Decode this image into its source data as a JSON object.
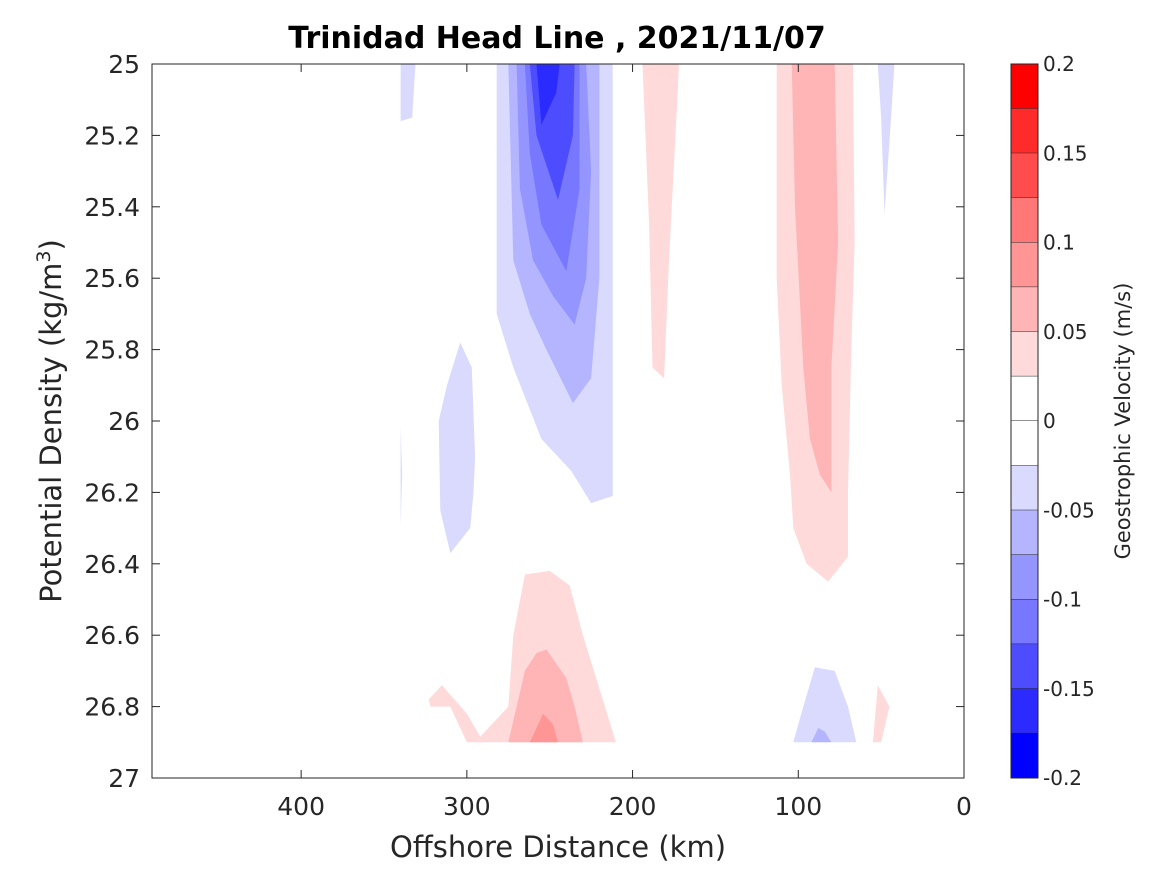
{
  "chart_data": {
    "type": "heatmap",
    "subtype": "filled-contour",
    "title": "Trinidad Head Line , 2021/11/07",
    "xlabel": "Offshore Distance (km)",
    "ylabel_main": "Potential Density (kg/m",
    "ylabel_sup": "3",
    "ylabel_end": ")",
    "xlim": [
      490,
      0
    ],
    "x_reversed": true,
    "x_ticks": [
      400,
      300,
      200,
      100,
      0
    ],
    "x_tick_labels": [
      "400",
      "300",
      "200",
      "100",
      "0"
    ],
    "ylim": [
      25,
      27
    ],
    "y_reversed": true,
    "y_ticks": [
      25,
      25.2,
      25.4,
      25.6,
      25.8,
      26,
      26.2,
      26.4,
      26.6,
      26.8,
      27
    ],
    "y_tick_labels": [
      "25",
      "25.2",
      "25.4",
      "25.6",
      "25.8",
      "26",
      "26.2",
      "26.4",
      "26.6",
      "26.8",
      "27"
    ],
    "colorbar": {
      "label": "Geostrophic Velocity (m/s)",
      "range": [
        -0.2,
        0.2
      ],
      "ticks": [
        0.2,
        0.15,
        0.1,
        0.05,
        0,
        -0.05,
        -0.1,
        -0.15,
        -0.2
      ],
      "tick_labels": [
        "0.2",
        "0.15",
        "0.1",
        "0.05",
        "0",
        "-0.05",
        "-0.1",
        "-0.15",
        "-0.2"
      ],
      "levels": [
        {
          "lo": 0.175,
          "hi": 0.2,
          "color": "#ff0000"
        },
        {
          "lo": 0.15,
          "hi": 0.175,
          "color": "#ff2b2b"
        },
        {
          "lo": 0.125,
          "hi": 0.15,
          "color": "#ff4d4d"
        },
        {
          "lo": 0.1,
          "hi": 0.125,
          "color": "#ff7777"
        },
        {
          "lo": 0.075,
          "hi": 0.1,
          "color": "#ff9595"
        },
        {
          "lo": 0.05,
          "hi": 0.075,
          "color": "#ffb5b5"
        },
        {
          "lo": 0.025,
          "hi": 0.05,
          "color": "#ffdada"
        },
        {
          "lo": 0,
          "hi": 0.025,
          "color": "#ffffff"
        },
        {
          "lo": -0.025,
          "hi": 0,
          "color": "#ffffff"
        },
        {
          "lo": -0.05,
          "hi": -0.025,
          "color": "#dadaff"
        },
        {
          "lo": -0.075,
          "hi": -0.05,
          "color": "#b5b5ff"
        },
        {
          "lo": -0.1,
          "hi": -0.075,
          "color": "#9595ff"
        },
        {
          "lo": -0.125,
          "hi": -0.1,
          "color": "#7777ff"
        },
        {
          "lo": -0.15,
          "hi": -0.125,
          "color": "#4d4dff"
        },
        {
          "lo": -0.175,
          "hi": -0.15,
          "color": "#2b2bff"
        },
        {
          "lo": -0.2,
          "hi": -0.175,
          "color": "#0000ff"
        }
      ]
    },
    "regions": [
      {
        "id": "neg-jet-l1",
        "value": -0.04,
        "color": "#dadaff",
        "polygon": [
          [
            282,
            25
          ],
          [
            282,
            25.7
          ],
          [
            272,
            25.85
          ],
          [
            255,
            26.05
          ],
          [
            237,
            26.14
          ],
          [
            225,
            26.23
          ],
          [
            212,
            26.21
          ],
          [
            212,
            25
          ],
          [
            282,
            25
          ]
        ]
      },
      {
        "id": "neg-jet-l2",
        "value": -0.065,
        "color": "#b5b5ff",
        "polygon": [
          [
            275,
            25
          ],
          [
            272,
            25.55
          ],
          [
            262,
            25.7
          ],
          [
            252,
            25.8
          ],
          [
            236,
            25.95
          ],
          [
            225,
            25.88
          ],
          [
            220,
            25.6
          ],
          [
            220,
            25
          ],
          [
            275,
            25
          ]
        ]
      },
      {
        "id": "neg-jet-l3",
        "value": -0.09,
        "color": "#9595ff",
        "polygon": [
          [
            270,
            25
          ],
          [
            268,
            25.35
          ],
          [
            260,
            25.55
          ],
          [
            248,
            25.65
          ],
          [
            235,
            25.73
          ],
          [
            228,
            25.6
          ],
          [
            225,
            25.3
          ],
          [
            228,
            25
          ],
          [
            270,
            25
          ]
        ]
      },
      {
        "id": "neg-jet-l4",
        "value": -0.11,
        "color": "#7777ff",
        "polygon": [
          [
            265,
            25
          ],
          [
            262,
            25.25
          ],
          [
            255,
            25.45
          ],
          [
            240,
            25.58
          ],
          [
            232,
            25.35
          ],
          [
            232,
            25
          ],
          [
            265,
            25
          ]
        ]
      },
      {
        "id": "neg-jet-l5",
        "value": -0.14,
        "color": "#4d4dff",
        "polygon": [
          [
            262,
            25
          ],
          [
            258,
            25.2
          ],
          [
            245,
            25.38
          ],
          [
            236,
            25.2
          ],
          [
            235,
            25
          ],
          [
            262,
            25
          ]
        ]
      },
      {
        "id": "neg-jet-l6",
        "value": -0.16,
        "color": "#2b2bff",
        "polygon": [
          [
            258,
            25
          ],
          [
            255,
            25.17
          ],
          [
            246,
            25.08
          ],
          [
            244,
            25
          ],
          [
            258,
            25
          ]
        ]
      },
      {
        "id": "neg-west-small",
        "value": -0.035,
        "color": "#dadaff",
        "polygon": [
          [
            340,
            25
          ],
          [
            340,
            25.16
          ],
          [
            333,
            25.15
          ],
          [
            331,
            25
          ],
          [
            340,
            25
          ]
        ]
      },
      {
        "id": "neg-west-strip",
        "value": -0.035,
        "color": "#dadaff",
        "polygon": [
          [
            304,
            25.78
          ],
          [
            297,
            25.85
          ],
          [
            295,
            26.1
          ],
          [
            296,
            26.2
          ],
          [
            298,
            26.3
          ],
          [
            310,
            26.37
          ],
          [
            316,
            26.25
          ],
          [
            317,
            26.0
          ],
          [
            312,
            25.9
          ],
          [
            304,
            25.78
          ]
        ]
      },
      {
        "id": "neg-thin-sliver",
        "value": -0.03,
        "color": "#dadaff",
        "polygon": [
          [
            340,
            26.02
          ],
          [
            339,
            26.15
          ],
          [
            340,
            26.29
          ],
          [
            340,
            26.02
          ]
        ]
      },
      {
        "id": "neg-east-small",
        "value": -0.035,
        "color": "#dadaff",
        "polygon": [
          [
            52,
            25
          ],
          [
            50,
            25.15
          ],
          [
            48,
            25.42
          ],
          [
            44,
            25.15
          ],
          [
            42,
            25
          ],
          [
            52,
            25
          ]
        ]
      },
      {
        "id": "neg-east-deep-l1",
        "value": -0.04,
        "color": "#dadaff",
        "polygon": [
          [
            90,
            26.69
          ],
          [
            78,
            26.7
          ],
          [
            70,
            26.8
          ],
          [
            65,
            26.9
          ],
          [
            103,
            26.9
          ],
          [
            97,
            26.8
          ],
          [
            90,
            26.69
          ]
        ]
      },
      {
        "id": "neg-east-deep-l2",
        "value": -0.06,
        "color": "#b5b5ff",
        "polygon": [
          [
            88,
            26.86
          ],
          [
            84,
            26.87
          ],
          [
            80,
            26.9
          ],
          [
            92,
            26.9
          ],
          [
            88,
            26.86
          ]
        ]
      },
      {
        "id": "pos-east-l1",
        "value": 0.04,
        "color": "#ffdada",
        "polygon": [
          [
            113,
            25
          ],
          [
            113,
            25.6
          ],
          [
            110,
            25.9
          ],
          [
            105,
            26.15
          ],
          [
            103,
            26.3
          ],
          [
            95,
            26.4
          ],
          [
            82,
            26.45
          ],
          [
            70,
            26.38
          ],
          [
            70,
            26.2
          ],
          [
            68,
            25.8
          ],
          [
            66,
            25.5
          ],
          [
            67,
            25
          ],
          [
            113,
            25
          ]
        ]
      },
      {
        "id": "pos-east-l2",
        "value": 0.065,
        "color": "#ffb5b5",
        "polygon": [
          [
            104,
            25
          ],
          [
            102,
            25.4
          ],
          [
            97,
            25.85
          ],
          [
            93,
            26.05
          ],
          [
            87,
            26.15
          ],
          [
            80,
            26.2
          ],
          [
            80,
            25.85
          ],
          [
            76,
            25.5
          ],
          [
            78,
            25
          ],
          [
            104,
            25
          ]
        ]
      },
      {
        "id": "pos-middle-strip",
        "value": 0.035,
        "color": "#ffdada",
        "polygon": [
          [
            194,
            25
          ],
          [
            190,
            25.45
          ],
          [
            188,
            25.85
          ],
          [
            181,
            25.88
          ],
          [
            178,
            25.55
          ],
          [
            173,
            25.1
          ],
          [
            172,
            25
          ],
          [
            194,
            25
          ]
        ]
      },
      {
        "id": "pos-deep-l1",
        "value": 0.04,
        "color": "#ffdada",
        "polygon": [
          [
            265,
            26.43
          ],
          [
            250,
            26.42
          ],
          [
            238,
            26.46
          ],
          [
            230,
            26.6
          ],
          [
            220,
            26.75
          ],
          [
            210,
            26.9
          ],
          [
            295,
            26.9
          ],
          [
            285,
            26.85
          ],
          [
            275,
            26.8
          ],
          [
            272,
            26.6
          ],
          [
            265,
            26.43
          ]
        ]
      },
      {
        "id": "pos-deep-l2",
        "value": 0.06,
        "color": "#ffb5b5",
        "polygon": [
          [
            258,
            26.65
          ],
          [
            252,
            26.64
          ],
          [
            240,
            26.72
          ],
          [
            235,
            26.8
          ],
          [
            230,
            26.9
          ],
          [
            275,
            26.9
          ],
          [
            270,
            26.8
          ],
          [
            265,
            26.7
          ],
          [
            258,
            26.65
          ]
        ]
      },
      {
        "id": "pos-deep-l3",
        "value": 0.085,
        "color": "#ff9595",
        "polygon": [
          [
            254,
            26.82
          ],
          [
            248,
            26.85
          ],
          [
            245,
            26.9
          ],
          [
            262,
            26.9
          ],
          [
            254,
            26.82
          ]
        ]
      },
      {
        "id": "pos-deep-west-blob",
        "value": 0.035,
        "color": "#ffdada",
        "polygon": [
          [
            315,
            26.74
          ],
          [
            323,
            26.78
          ],
          [
            322,
            26.8
          ],
          [
            310,
            26.8
          ],
          [
            300,
            26.9
          ],
          [
            290,
            26.9
          ],
          [
            300,
            26.82
          ],
          [
            315,
            26.74
          ]
        ]
      },
      {
        "id": "pos-east-deep-small",
        "value": 0.035,
        "color": "#ffdada",
        "polygon": [
          [
            52,
            26.74
          ],
          [
            45,
            26.8
          ],
          [
            50,
            26.9
          ],
          [
            55,
            26.9
          ],
          [
            52,
            26.74
          ]
        ]
      }
    ]
  }
}
